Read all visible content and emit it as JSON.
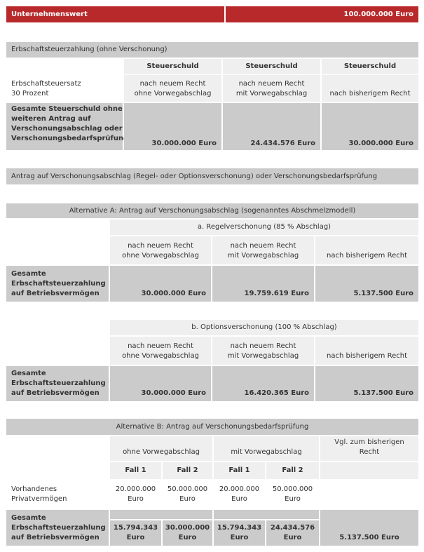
{
  "header": {
    "label": "Unternehmenswert",
    "value": "100.000.000 Euro"
  },
  "section1": {
    "title": "Erbschaftsteuerzahlung (ohne Verschonung)",
    "col_header": "Steuerschuld",
    "rate_label": "Erbschaftsteuersatz\n30 Prozent",
    "cols": [
      "nach neuem Recht\nohne Vorwegabschlag",
      "nach neuem Recht\nmit Vorwegabschlag",
      "nach bisherigem Recht"
    ],
    "total_label": "Gesamte Steuerschuld ohne weiteren Antrag auf Verschonungsabschlag oder Verschonungsbedarfsprüfung",
    "values": [
      "30.000.000 Euro",
      "24.434.576 Euro",
      "30.000.000 Euro"
    ]
  },
  "section2": {
    "title": "Antrag auf Verschonungsabschlag (Regel- oder Optionsverschonung) oder Verschonungsbedarfsprüfung"
  },
  "altA": {
    "title": "Alternative A: Antrag auf Verschonungsabschlag (sogenanntes Abschmelzmodell)",
    "cols": [
      "nach neuem Recht\nohne Vorwegabschlag",
      "nach neuem Recht\nmit Vorwegabschlag",
      "nach bisherigem Recht"
    ],
    "row_label": "Gesamte\nErbschaftsteuerzahlung\nauf Betriebsvermögen",
    "a": {
      "title": "a. Regelverschonung (85 % Abschlag)",
      "values": [
        "30.000.000 Euro",
        "19.759.619 Euro",
        "5.137.500 Euro"
      ]
    },
    "b": {
      "title": "b. Optionsverschonung (100 % Abschlag)",
      "values": [
        "30.000.000 Euro",
        "16.420.365 Euro",
        "5.137.500 Euro"
      ]
    }
  },
  "altB": {
    "title": "Alternative B: Antrag auf Verschonungsbedarfsprüfung",
    "groups": [
      "ohne Vorwegabschlag",
      "mit Vorwegabschlag"
    ],
    "compare": "Vgl. zum bisherigen\nRecht",
    "fall": [
      "Fall 1",
      "Fall 2",
      "Fall 1",
      "Fall 2"
    ],
    "priv_label": "Vorhandenes\nPrivatvermögen",
    "priv": [
      "20.000.000\nEuro",
      "50.000.000\nEuro",
      "20.000.000\nEuro",
      "50.000.000\nEuro"
    ],
    "total_label": "Gesamte\nErbschaftsteuerzahlung\nauf Betriebsvermögen",
    "totals": [
      "15.794.343\nEuro",
      "30.000.000\nEuro",
      "15.794.343\nEuro",
      "24.434.576\nEuro"
    ],
    "compare_value": "5.137.500 Euro"
  }
}
